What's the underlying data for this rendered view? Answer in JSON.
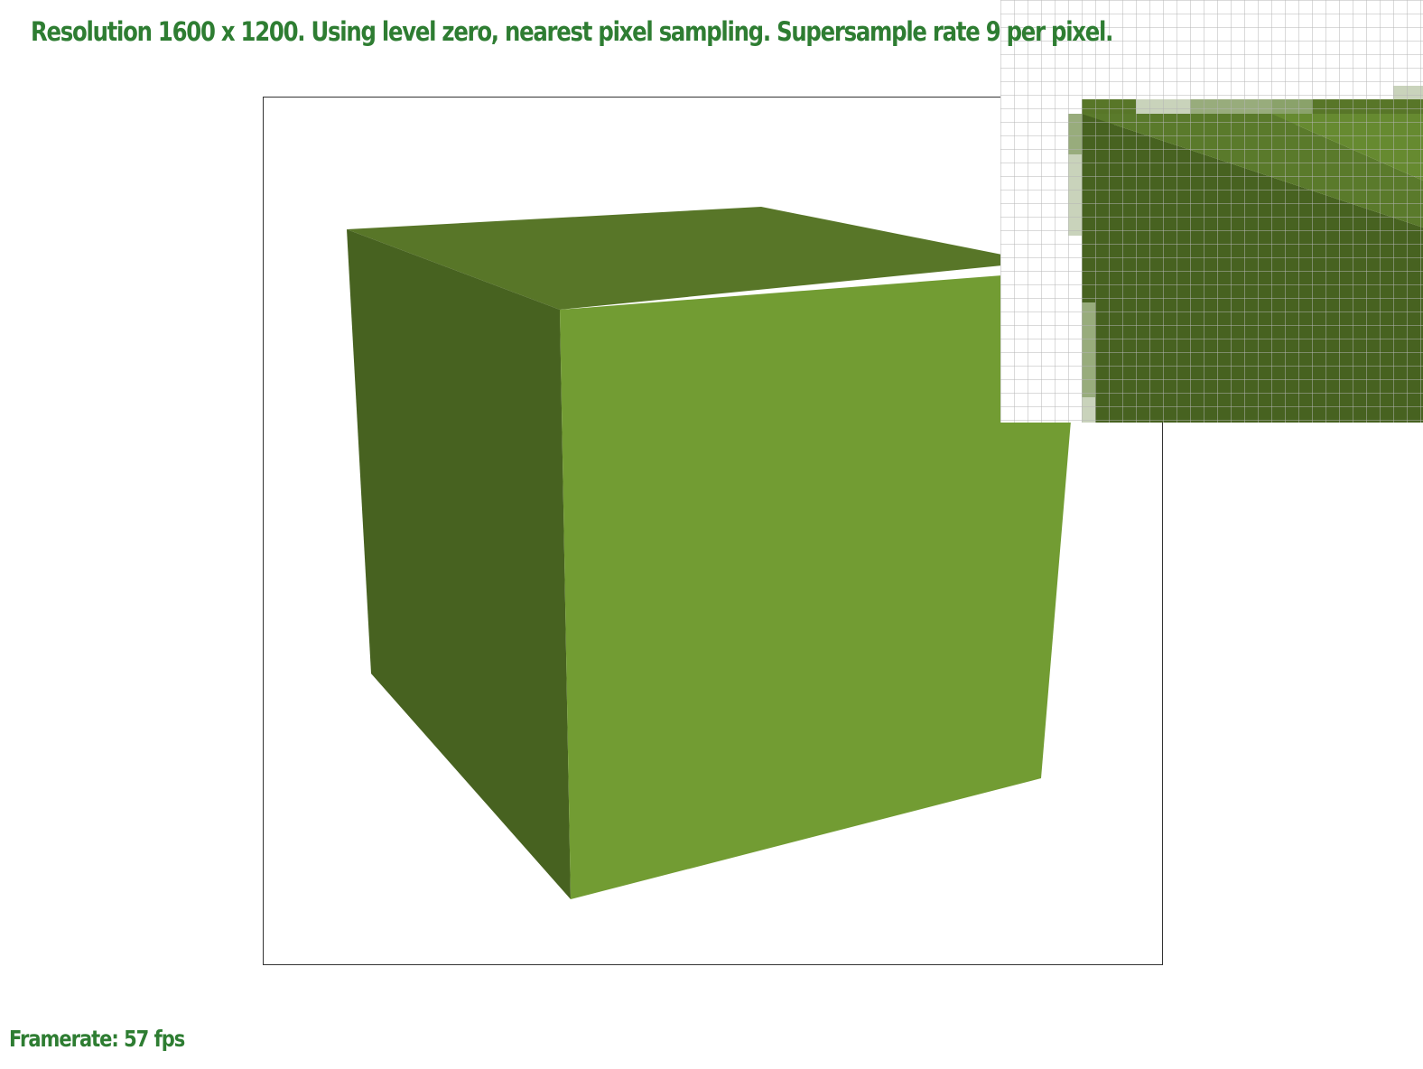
{
  "header": {
    "status_text": "Resolution 1600 x 1200. Using level zero, nearest pixel sampling. Supersample rate 9 per pixel."
  },
  "footer": {
    "framerate_text": "Framerate: 57 fps"
  },
  "colors": {
    "text": "#2e7d32",
    "cube_top": "#587628",
    "cube_left": "#476220",
    "cube_front": "#729c33",
    "viewport_border": "#333333",
    "zoom_grid": "#b5b5b5",
    "zoom_edge_light": "#c9d3bb",
    "zoom_edge_mid": "#98ac7c"
  },
  "icons": {
    "zoom_inset": "magnifier-pixel-grid"
  }
}
